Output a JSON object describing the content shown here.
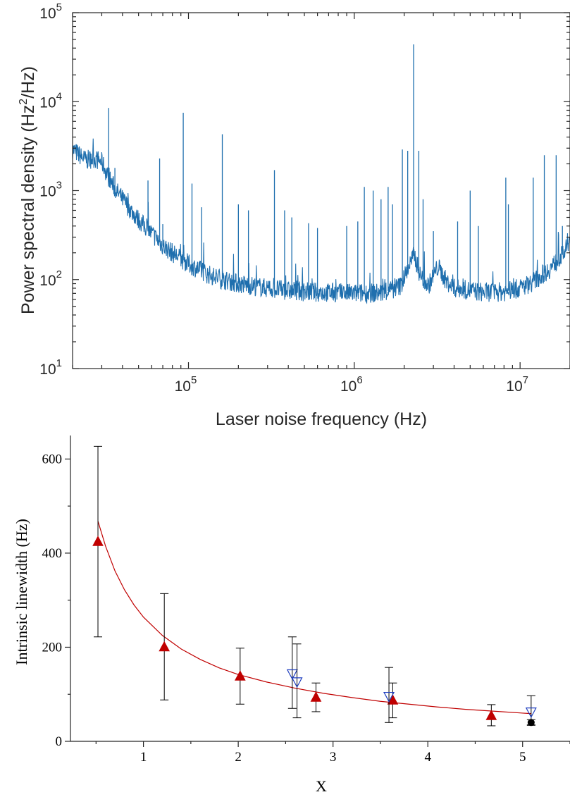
{
  "chart_data": [
    {
      "type": "line",
      "xlabel": "Laser noise frequency (Hz)",
      "ylabel_main": "Power spectral density (Hz",
      "ylabel_sup": "2",
      "ylabel_tail": "/Hz)",
      "xscale": "log",
      "yscale": "log",
      "xlim": [
        20000,
        20000000
      ],
      "ylim": [
        10,
        100000
      ],
      "x_ticks": [
        {
          "base": "10",
          "exp": "5",
          "value": 100000
        },
        {
          "base": "10",
          "exp": "6",
          "value": 1000000
        },
        {
          "base": "10",
          "exp": "7",
          "value": 10000000
        }
      ],
      "y_ticks": [
        {
          "base": "10",
          "exp": "1",
          "value": 10
        },
        {
          "base": "10",
          "exp": "2",
          "value": 100
        },
        {
          "base": "10",
          "exp": "3",
          "value": 1000
        },
        {
          "base": "10",
          "exp": "4",
          "value": 10000
        },
        {
          "base": "10",
          "exp": "5",
          "value": 100000
        }
      ],
      "grid": false,
      "line_color": "#1f6fae",
      "baseline": [
        [
          20000,
          2900
        ],
        [
          24000,
          2200
        ],
        [
          27000,
          2300
        ],
        [
          30000,
          2100
        ],
        [
          33000,
          1400
        ],
        [
          36000,
          1050
        ],
        [
          40000,
          800
        ],
        [
          45000,
          600
        ],
        [
          50000,
          470
        ],
        [
          60000,
          330
        ],
        [
          70000,
          240
        ],
        [
          80000,
          200
        ],
        [
          100000,
          150
        ],
        [
          130000,
          115
        ],
        [
          160000,
          100
        ],
        [
          200000,
          90
        ],
        [
          300000,
          80
        ],
        [
          400000,
          75
        ],
        [
          600000,
          72
        ],
        [
          1000000,
          70
        ],
        [
          1500000,
          71
        ],
        [
          1900000,
          85
        ],
        [
          2200000,
          160
        ],
        [
          2300000,
          190
        ],
        [
          2500000,
          110
        ],
        [
          2800000,
          85
        ],
        [
          3200000,
          140
        ],
        [
          3600000,
          95
        ],
        [
          4000000,
          80
        ],
        [
          6000000,
          72
        ],
        [
          8000000,
          73
        ],
        [
          10000000,
          80
        ],
        [
          12000000,
          95
        ],
        [
          15000000,
          130
        ],
        [
          18000000,
          190
        ],
        [
          20000000,
          260
        ]
      ],
      "spikes": [
        [
          33000,
          8500
        ],
        [
          36000,
          1800
        ],
        [
          57000,
          1300
        ],
        [
          67000,
          2300
        ],
        [
          70000,
          420
        ],
        [
          93000,
          7500
        ],
        [
          105000,
          1200
        ],
        [
          120000,
          650
        ],
        [
          160000,
          4300
        ],
        [
          200000,
          700
        ],
        [
          230000,
          600
        ],
        [
          330000,
          1700
        ],
        [
          380000,
          600
        ],
        [
          420000,
          500
        ],
        [
          530000,
          430
        ],
        [
          600000,
          380
        ],
        [
          900000,
          400
        ],
        [
          1050000,
          450
        ],
        [
          1150000,
          1100
        ],
        [
          1300000,
          1000
        ],
        [
          1450000,
          800
        ],
        [
          1600000,
          1100
        ],
        [
          1700000,
          700
        ],
        [
          1950000,
          2900
        ],
        [
          2100000,
          2800
        ],
        [
          2280000,
          44000
        ],
        [
          2450000,
          2800
        ],
        [
          2600000,
          800
        ],
        [
          3000000,
          350
        ],
        [
          4200000,
          450
        ],
        [
          5000000,
          1000
        ],
        [
          5600000,
          400
        ],
        [
          8200000,
          1400
        ],
        [
          8500000,
          700
        ],
        [
          12000000,
          1400
        ],
        [
          14000000,
          2500
        ],
        [
          16500000,
          2500
        ],
        [
          18000000,
          400
        ]
      ]
    },
    {
      "type": "scatter",
      "xlabel": "X",
      "ylabel": "Intrinsic linewidth (Hz)",
      "xlim": [
        0.23,
        5.5
      ],
      "ylim": [
        0,
        650
      ],
      "x_ticks": [
        "1",
        "2",
        "3",
        "4",
        "5"
      ],
      "y_ticks": [
        "0",
        "200",
        "400",
        "600"
      ],
      "grid": false,
      "series": [
        {
          "marker": "triangle-up",
          "color": "#c00000",
          "points": [
            {
              "x": 0.52,
              "y": 425,
              "lo": 222,
              "hi": 627
            },
            {
              "x": 1.22,
              "y": 201,
              "lo": 88,
              "hi": 314
            },
            {
              "x": 2.02,
              "y": 139,
              "lo": 79,
              "hi": 198
            },
            {
              "x": 2.82,
              "y": 94,
              "lo": 63,
              "hi": 124
            },
            {
              "x": 3.63,
              "y": 88,
              "lo": 50,
              "hi": 124
            },
            {
              "x": 4.67,
              "y": 55,
              "lo": 33,
              "hi": 78
            }
          ]
        },
        {
          "marker": "triangle-down-open",
          "color": "#1f3fbf",
          "points": [
            {
              "x": 2.57,
              "y": 143,
              "lo": 70,
              "hi": 222
            },
            {
              "x": 2.62,
              "y": 126,
              "lo": 50,
              "hi": 207
            },
            {
              "x": 3.59,
              "y": 95,
              "lo": 40,
              "hi": 157
            },
            {
              "x": 5.09,
              "y": 62,
              "lo": 35,
              "hi": 97
            }
          ]
        },
        {
          "marker": "circle",
          "color": "#000000",
          "points": [
            {
              "x": 5.09,
              "y": 40,
              "lo": 34,
              "hi": 46
            }
          ]
        }
      ],
      "fit": {
        "color": "#c00000",
        "points": [
          [
            0.52,
            468
          ],
          [
            0.6,
            415
          ],
          [
            0.7,
            362
          ],
          [
            0.8,
            322
          ],
          [
            0.9,
            290
          ],
          [
            1.0,
            264
          ],
          [
            1.2,
            225
          ],
          [
            1.4,
            196
          ],
          [
            1.6,
            174
          ],
          [
            1.8,
            156
          ],
          [
            2.0,
            142
          ],
          [
            2.3,
            126
          ],
          [
            2.6,
            113
          ],
          [
            2.9,
            102
          ],
          [
            3.2,
            93
          ],
          [
            3.5,
            85
          ],
          [
            3.8,
            79
          ],
          [
            4.1,
            73
          ],
          [
            4.4,
            68
          ],
          [
            4.7,
            64
          ],
          [
            5.0,
            60
          ],
          [
            5.09,
            59
          ]
        ]
      }
    }
  ]
}
